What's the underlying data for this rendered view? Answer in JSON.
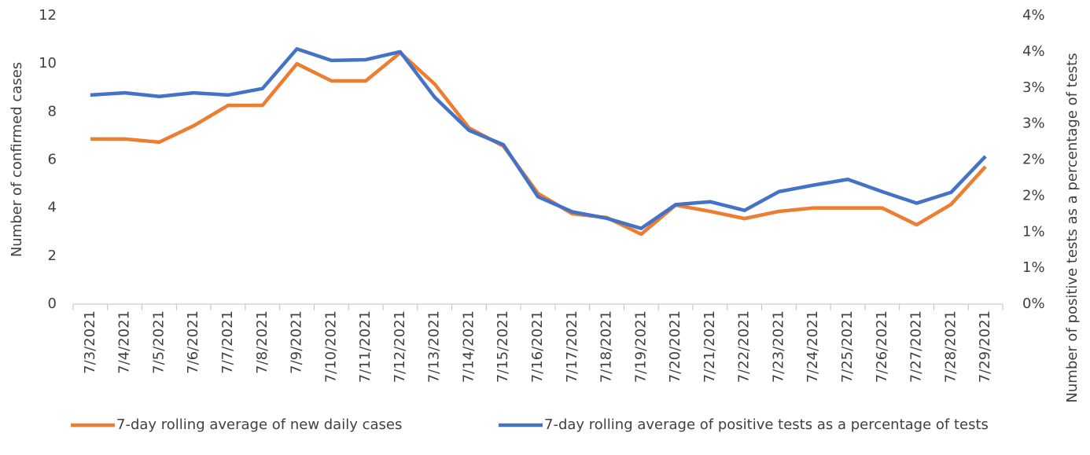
{
  "chart_data": {
    "type": "line",
    "y_label": "Number of confirmed cases",
    "y2_label": "Number of positive tests as a percentage of tests",
    "categories": [
      "7/3/2021",
      "7/4/2021",
      "7/5/2021",
      "7/6/2021",
      "7/7/2021",
      "7/8/2021",
      "7/9/2021",
      "7/10/2021",
      "7/11/2021",
      "7/12/2021",
      "7/13/2021",
      "7/14/2021",
      "7/15/2021",
      "7/16/2021",
      "7/17/2021",
      "7/18/2021",
      "7/19/2021",
      "7/20/2021",
      "7/21/2021",
      "7/22/2021",
      "7/23/2021",
      "7/24/2021",
      "7/25/2021",
      "7/26/2021",
      "7/27/2021",
      "7/28/2021",
      "7/29/2021"
    ],
    "series": [
      {
        "name": "7-day rolling average of new daily cases",
        "color": "#ed7d31",
        "axis": "y",
        "values": [
          6.87,
          6.87,
          6.74,
          7.42,
          8.27,
          8.27,
          10,
          9.29,
          9.29,
          10.46,
          9.16,
          7.33,
          6.57,
          4.61,
          3.76,
          3.6,
          2.91,
          4.12,
          3.86,
          3.56,
          3.86,
          4,
          4,
          4,
          3.3,
          4.15,
          5.72
        ]
      },
      {
        "name": "7-day rolling average of positive tests as a percentage of tests",
        "color": "#4472c4",
        "axis": "y2",
        "values": [
          2.9,
          2.93,
          2.88,
          2.93,
          2.9,
          2.99,
          3.54,
          3.38,
          3.39,
          3.5,
          2.87,
          2.41,
          2.21,
          1.49,
          1.28,
          1.19,
          1.05,
          1.38,
          1.42,
          1.3,
          1.56,
          1.65,
          1.73,
          1.56,
          1.4,
          1.55,
          2.05
        ]
      }
    ],
    "ylim": [
      0,
      12
    ],
    "yticks": [
      0,
      2,
      4,
      6,
      8,
      10,
      12
    ],
    "y2lim": [
      0,
      4
    ],
    "y2ticks": [
      {
        "value": 0,
        "label": "0%"
      },
      {
        "value": 0.5,
        "label": "1%"
      },
      {
        "value": 1,
        "label": "1%"
      },
      {
        "value": 1.5,
        "label": "2%"
      },
      {
        "value": 2,
        "label": "2%"
      },
      {
        "value": 2.5,
        "label": "3%"
      },
      {
        "value": 3,
        "label": "3%"
      },
      {
        "value": 3.5,
        "label": "4%"
      },
      {
        "value": 4,
        "label": "4%"
      }
    ],
    "grid": false,
    "legend": "bottom"
  }
}
